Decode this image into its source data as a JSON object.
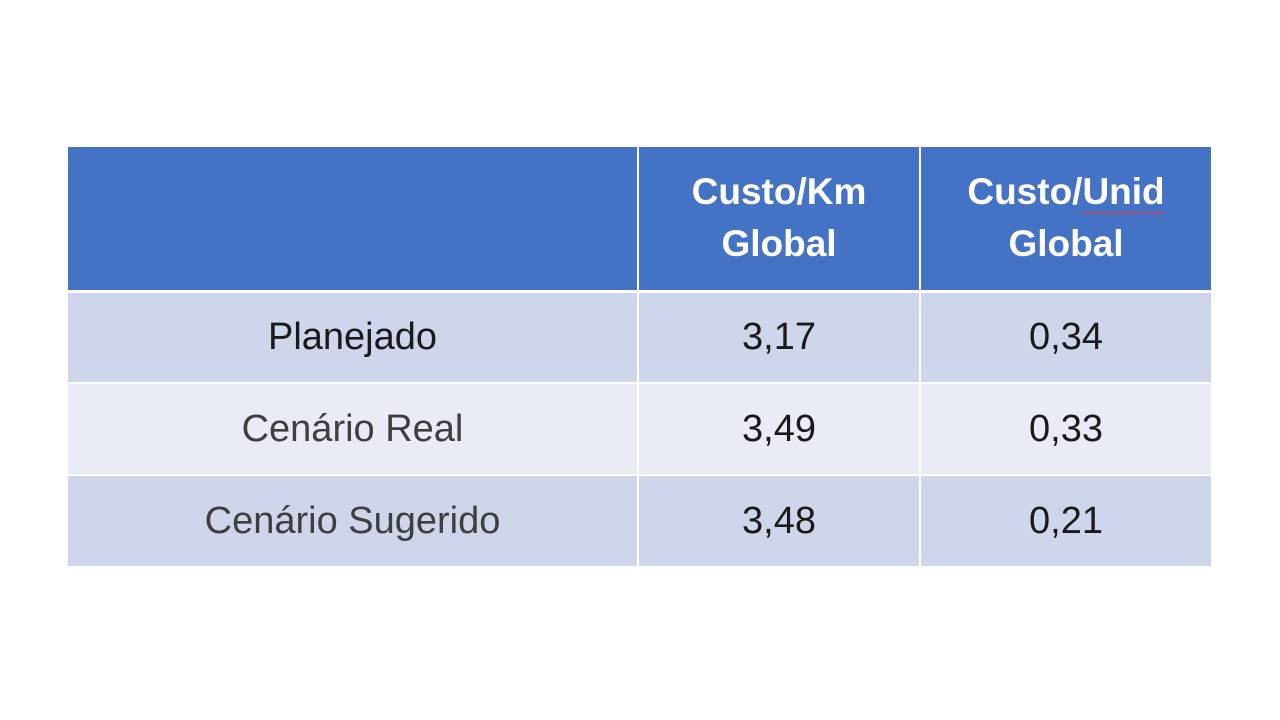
{
  "table": {
    "headers": {
      "col0": "",
      "col1": {
        "line1": "Custo/Km",
        "line2": "Global"
      },
      "col2": {
        "line1_a": "Custo/",
        "line1_b": "Unid",
        "line2": "Global"
      }
    },
    "rows": [
      {
        "label": "Planejado",
        "custo_km": "3,17",
        "custo_unid": "0,34"
      },
      {
        "label": "Cenário Real",
        "custo_km": "3,49",
        "custo_unid": "0,33"
      },
      {
        "label": "Cenário Sugerido",
        "custo_km": "3,48",
        "custo_unid": "0,21"
      }
    ]
  },
  "colors": {
    "header_bg": "#4472c4",
    "row_band_1": "#cfd5ea",
    "row_band_2": "#e9ebf5",
    "header_text": "#ffffff"
  }
}
